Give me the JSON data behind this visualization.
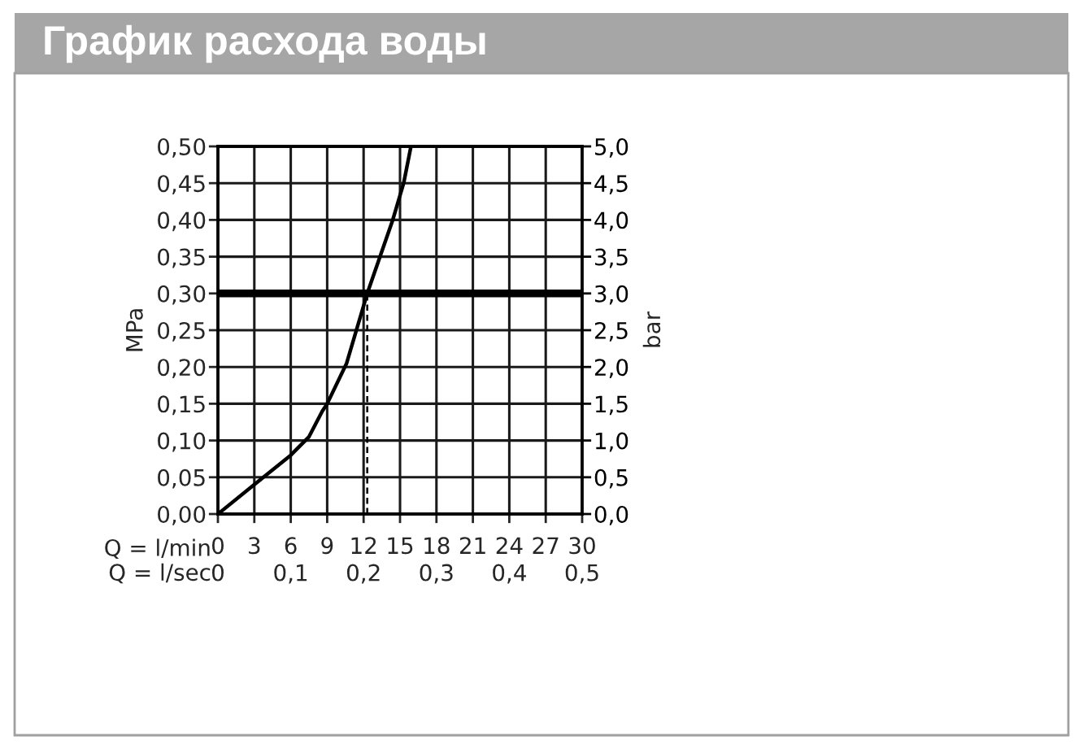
{
  "chart_data": {
    "type": "line",
    "title": "График расхода воды",
    "xlabel": "Q = l/min",
    "x2label": "Q = l/sec",
    "ylabel": "MPa",
    "y2label": "bar",
    "series": [
      {
        "color": "#000000",
        "x": [
          0,
          3,
          6,
          7.5,
          8.6,
          9,
          10.6,
          12.3,
          14.4,
          15.3,
          15.9
        ],
        "values": [
          0,
          0.04,
          0.08,
          0.105,
          0.14,
          0.15,
          0.205,
          0.3,
          0.4,
          0.45,
          0.5
        ]
      },
      {
        "color": "#000000",
        "line_style": "dashed",
        "x": [
          12.3,
          12.3
        ],
        "values": [
          0,
          0.3
        ]
      }
    ],
    "xlim": [
      0,
      30
    ],
    "xticks": [
      0,
      3,
      6,
      9,
      12,
      15,
      18,
      21,
      24,
      27,
      30
    ],
    "x2lim": [
      0,
      0.5
    ],
    "x2ticks": [
      0,
      {
        "value": 0.1,
        "label": "0,1"
      },
      {
        "value": 0.2,
        "label": "0,2"
      },
      {
        "value": 0.3,
        "label": "0,3"
      },
      {
        "value": 0.4,
        "label": "0,4"
      },
      {
        "value": 0.5,
        "label": "0,5"
      }
    ],
    "ylim": [
      0,
      0.5
    ],
    "yticks": [
      {
        "value": 0,
        "label": "0,00"
      },
      {
        "value": 0.05,
        "label": "0,05"
      },
      {
        "value": 0.1,
        "label": "0,10"
      },
      {
        "value": 0.15,
        "label": "0,15"
      },
      {
        "value": 0.2,
        "label": "0,20"
      },
      {
        "value": 0.25,
        "label": "0,25"
      },
      {
        "value": 0.3,
        "label": "0,30"
      },
      {
        "value": 0.35,
        "label": "0,35"
      },
      {
        "value": 0.4,
        "label": "0,40"
      },
      {
        "value": 0.45,
        "label": "0,45"
      },
      {
        "value": 0.5,
        "label": "0,50"
      }
    ],
    "y2lim": [
      0,
      5
    ],
    "y2ticks": [
      {
        "value": 0,
        "label": "0,0"
      },
      {
        "value": 0.5,
        "label": "0,5"
      },
      {
        "value": 1,
        "label": "1,0"
      },
      {
        "value": 1.5,
        "label": "1,5"
      },
      {
        "value": 2,
        "label": "2,0"
      },
      {
        "value": 2.5,
        "label": "2,5"
      },
      {
        "value": 3,
        "label": "3,0"
      },
      {
        "value": 3.5,
        "label": "3,5"
      },
      {
        "value": 4,
        "label": "4,0"
      },
      {
        "value": 4.5,
        "label": "4,5"
      },
      {
        "value": 5,
        "label": "5,0"
      }
    ],
    "ref_lines": [
      {
        "axis": "y",
        "value": 0.3,
        "color": "#000000"
      }
    ],
    "grid": true
  }
}
